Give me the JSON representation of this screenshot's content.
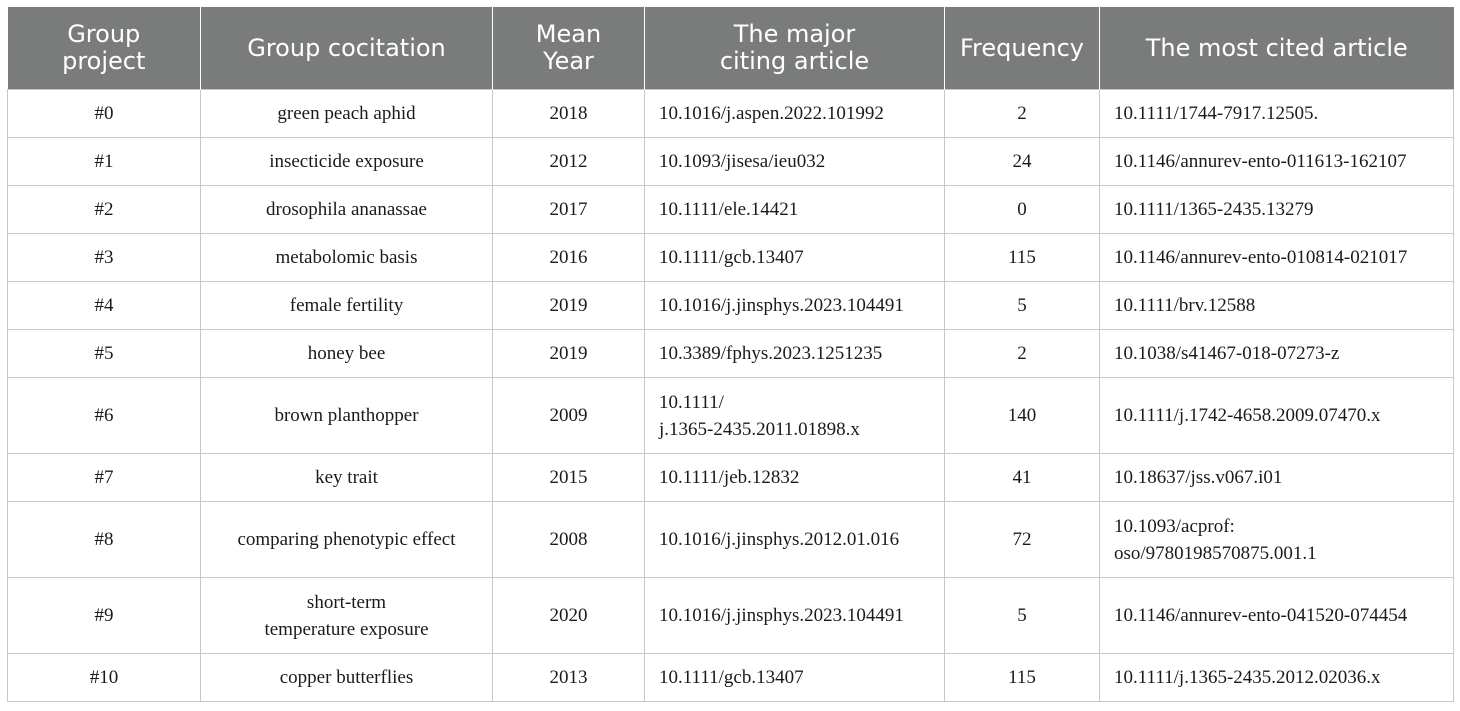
{
  "table": {
    "headers": [
      "Group\nproject",
      "Group cocitation",
      "Mean\nYear",
      "The major\nciting article",
      "Frequency",
      "The most cited article"
    ],
    "rows": [
      [
        "#0",
        "green peach aphid",
        "2018",
        "10.1016/j.aspen.2022.101992",
        "2",
        "10.1111/1744-7917.12505."
      ],
      [
        "#1",
        "insecticide exposure",
        "2012",
        "10.1093/jisesa/ieu032",
        "24",
        "10.1146/annurev-ento-011613-162107"
      ],
      [
        "#2",
        "drosophila ananassae",
        "2017",
        "10.1111/ele.14421",
        "0",
        "10.1111/1365-2435.13279"
      ],
      [
        "#3",
        "metabolomic basis",
        "2016",
        "10.1111/gcb.13407",
        "115",
        "10.1146/annurev-ento-010814-021017"
      ],
      [
        "#4",
        "female fertility",
        "2019",
        "10.1016/j.jinsphys.2023.104491",
        "5",
        "10.1111/brv.12588"
      ],
      [
        "#5",
        "honey bee",
        "2019",
        "10.3389/fphys.2023.1251235",
        "2",
        "10.1038/s41467-018-07273-z"
      ],
      [
        "#6",
        "brown planthopper",
        "2009",
        "10.1111/\nj.1365-2435.2011.01898.x",
        "140",
        "10.1111/j.1742-4658.2009.07470.x"
      ],
      [
        "#7",
        "key trait",
        "2015",
        "10.1111/jeb.12832",
        "41",
        "10.18637/jss.v067.i01"
      ],
      [
        "#8",
        "comparing phenotypic effect",
        "2008",
        "10.1016/j.jinsphys.2012.01.016",
        "72",
        "10.1093/acprof:\noso/9780198570875.001.1"
      ],
      [
        "#9",
        "short-term\ntemperature exposure",
        "2020",
        "10.1016/j.jinsphys.2023.104491",
        "5",
        "10.1146/annurev-ento-041520-074454"
      ],
      [
        "#10",
        "copper butterflies",
        "2013",
        "10.1111/gcb.13407",
        "115",
        "10.1111/j.1365-2435.2012.02036.x"
      ]
    ]
  }
}
